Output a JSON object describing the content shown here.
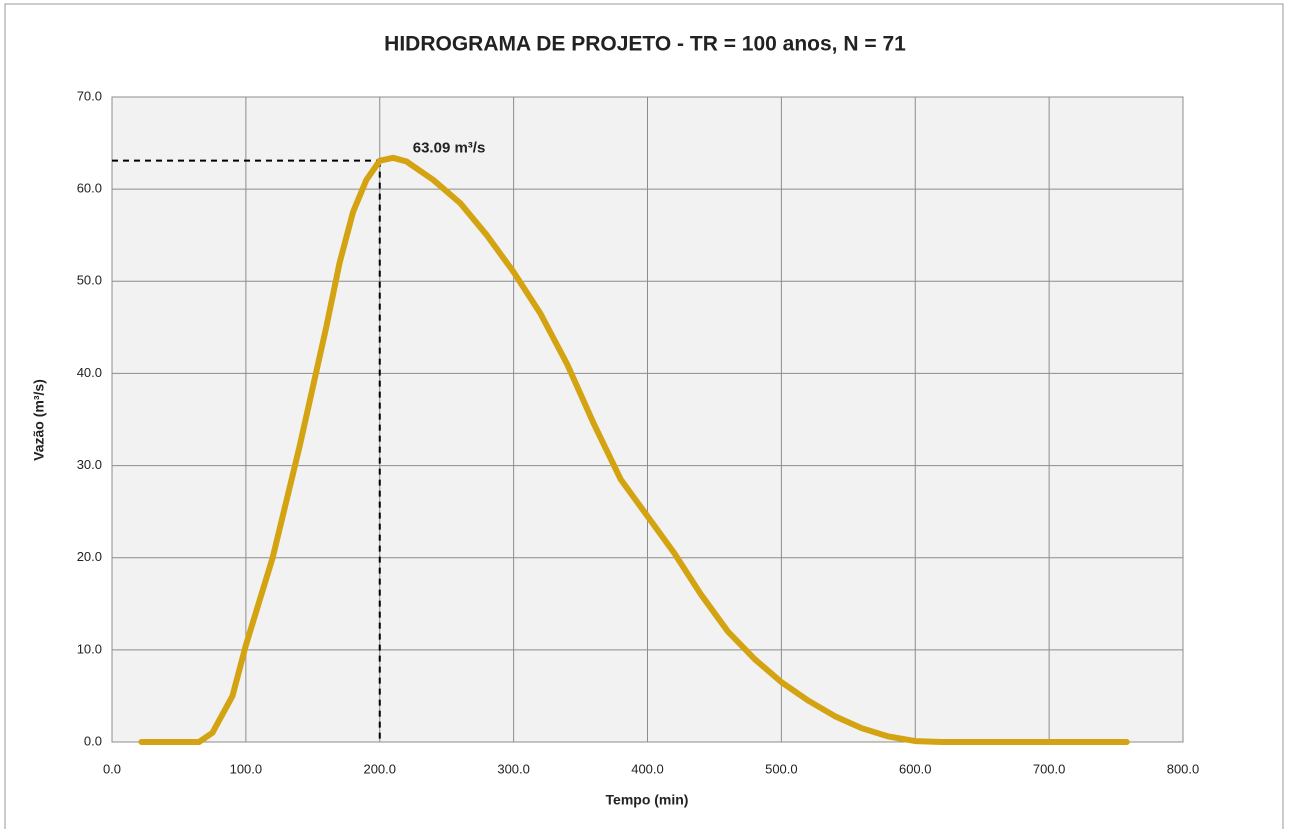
{
  "chart_data": {
    "type": "line",
    "title": "HIDROGRAMA DE PROJETO - TR = 100 anos, N = 71",
    "x_label": "Tempo (min)",
    "y_label": "Vazão (m³/s)",
    "x": [
      22,
      50,
      65,
      75,
      90,
      100,
      120,
      140,
      160,
      170,
      180,
      190,
      200,
      210,
      220,
      240,
      260,
      280,
      300,
      320,
      340,
      360,
      380,
      400,
      420,
      440,
      460,
      480,
      500,
      520,
      540,
      560,
      580,
      600,
      620,
      700,
      758
    ],
    "series": [
      {
        "name": "Vazão",
        "color": "#d4a312",
        "values": [
          0,
          0,
          0,
          1,
          5,
          10.5,
          20,
          32,
          45,
          52,
          57.5,
          61,
          63.09,
          63.4,
          63,
          61,
          58.5,
          55,
          51,
          46.5,
          41,
          34.5,
          28.5,
          24.5,
          20.5,
          16,
          12,
          9,
          6.5,
          4.5,
          2.8,
          1.5,
          0.6,
          0.1,
          0,
          0,
          0
        ]
      }
    ],
    "xlim": [
      0,
      800
    ],
    "xticks": [
      {
        "value": 0,
        "label": "0.0"
      },
      {
        "value": 100,
        "label": "100.0"
      },
      {
        "value": 200,
        "label": "200.0"
      },
      {
        "value": 300,
        "label": "300.0"
      },
      {
        "value": 400,
        "label": "400.0"
      },
      {
        "value": 500,
        "label": "500.0"
      },
      {
        "value": 600,
        "label": "600.0"
      },
      {
        "value": 700,
        "label": "700.0"
      },
      {
        "value": 800,
        "label": "800.0"
      }
    ],
    "ylim": [
      0,
      70
    ],
    "yticks": [
      {
        "value": 0,
        "label": "0.0"
      },
      {
        "value": 10,
        "label": "10.0"
      },
      {
        "value": 20,
        "label": "20.0"
      },
      {
        "value": 30,
        "label": "30.0"
      },
      {
        "value": 40,
        "label": "40.0"
      },
      {
        "value": 50,
        "label": "50.0"
      },
      {
        "value": 60,
        "label": "60.0"
      },
      {
        "value": 70,
        "label": "70.0"
      }
    ],
    "grid": true,
    "annotation": {
      "text": "63.09 m³/s",
      "x": 200,
      "y": 63.09
    }
  }
}
